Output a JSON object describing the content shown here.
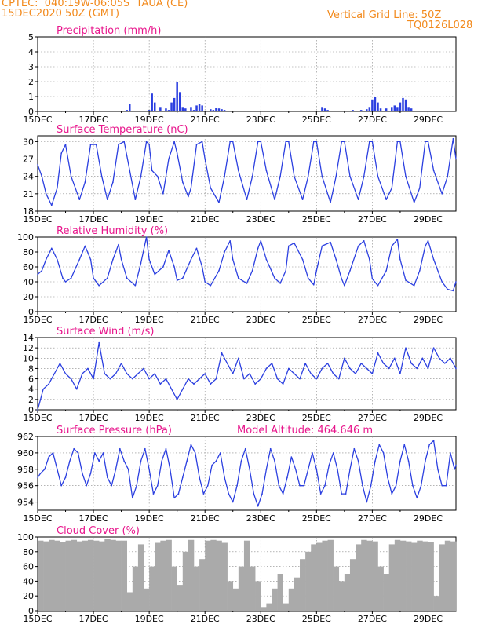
{
  "header": {
    "line1": "CPTEC:  040:19W-06:05S  TAUA (CE)",
    "line2": "15DEC2020 50Z (GMT)",
    "grid_note": "Vertical Grid Line: 50Z",
    "code": "TQ0126L028"
  },
  "colors": {
    "header": "#f28a1d",
    "title": "#e8168c",
    "line": "#2b3fe0",
    "cloud": "#aaaaaa",
    "grid": "#888888"
  },
  "chart_data": [
    {
      "id": "precip",
      "type": "bar",
      "title": "Precipitation (mm/h)",
      "ylim": [
        0,
        5
      ],
      "yticks": [
        0,
        1,
        2,
        3,
        4,
        5
      ],
      "x_range_days": [
        15,
        30
      ],
      "xtick_labels": [
        "15DEC",
        "17DEC",
        "19DEC",
        "21DEC",
        "23DEC",
        "25DEC",
        "27DEC",
        "29DEC"
      ],
      "x": [
        15.1,
        15.5,
        16.0,
        16.5,
        17.0,
        17.5,
        18.0,
        18.2,
        18.3,
        19.0,
        19.1,
        19.2,
        19.4,
        19.6,
        19.7,
        19.8,
        19.9,
        20.0,
        20.1,
        20.2,
        20.3,
        20.5,
        20.6,
        20.7,
        20.8,
        20.9,
        21.2,
        21.3,
        21.4,
        21.5,
        21.6,
        21.7,
        22.0,
        22.5,
        23.0,
        23.5,
        24.0,
        24.5,
        25.0,
        25.2,
        25.3,
        25.4,
        26.0,
        26.3,
        26.5,
        26.6,
        26.8,
        26.9,
        27.0,
        27.1,
        27.2,
        27.3,
        27.5,
        27.7,
        27.8,
        27.9,
        28.0,
        28.1,
        28.2,
        28.3,
        28.4,
        28.5,
        29.0,
        29.5
      ],
      "values": [
        0.05,
        0.05,
        0.05,
        0.05,
        0.05,
        0.05,
        0.05,
        0.1,
        0.5,
        0.1,
        1.2,
        0.6,
        0.3,
        0.2,
        0.1,
        0.6,
        0.9,
        2.0,
        1.3,
        0.3,
        0.2,
        0.3,
        0.1,
        0.4,
        0.5,
        0.4,
        0.15,
        0.1,
        0.25,
        0.2,
        0.15,
        0.1,
        0.05,
        0.05,
        0.05,
        0.05,
        0.05,
        0.05,
        0.05,
        0.3,
        0.2,
        0.1,
        0.05,
        0.1,
        0.05,
        0.1,
        0.15,
        0.3,
        0.8,
        1.0,
        0.6,
        0.2,
        0.2,
        0.3,
        0.4,
        0.3,
        0.6,
        0.9,
        0.8,
        0.3,
        0.2,
        0.05,
        0.05,
        0.05
      ]
    },
    {
      "id": "temp",
      "type": "line",
      "title": "Surface Temperature (nC)",
      "ylim": [
        18,
        31
      ],
      "yticks": [
        18,
        21,
        24,
        27,
        30
      ],
      "x_range_days": [
        15,
        30
      ],
      "xtick_labels": [
        "15DEC",
        "17DEC",
        "19DEC",
        "21DEC",
        "23DEC",
        "25DEC",
        "27DEC",
        "29DEC"
      ],
      "x": [
        15.0,
        15.15,
        15.3,
        15.5,
        15.7,
        15.85,
        16.0,
        16.2,
        16.5,
        16.7,
        16.9,
        17.1,
        17.3,
        17.5,
        17.7,
        17.9,
        18.1,
        18.3,
        18.5,
        18.7,
        18.9,
        19.0,
        19.1,
        19.3,
        19.5,
        19.7,
        19.9,
        20.0,
        20.2,
        20.4,
        20.5,
        20.7,
        20.9,
        21.0,
        21.2,
        21.5,
        21.7,
        21.9,
        22.0,
        22.2,
        22.5,
        22.7,
        22.9,
        23.0,
        23.2,
        23.5,
        23.7,
        23.9,
        24.0,
        24.2,
        24.5,
        24.7,
        24.9,
        25.0,
        25.2,
        25.5,
        25.7,
        25.9,
        26.0,
        26.2,
        26.5,
        26.7,
        26.9,
        27.0,
        27.2,
        27.5,
        27.7,
        27.9,
        28.0,
        28.2,
        28.5,
        28.7,
        28.9,
        29.0,
        29.2,
        29.5,
        29.7,
        29.9,
        30.0
      ],
      "values": [
        26,
        24,
        21,
        19,
        22,
        28,
        29.5,
        24,
        20,
        23,
        29.5,
        29.5,
        24,
        20,
        23,
        29.5,
        30,
        25,
        20,
        24,
        30,
        29.5,
        25,
        24,
        21,
        27,
        30,
        28,
        23,
        20.5,
        22,
        29.5,
        30,
        27,
        22,
        19.5,
        24,
        30,
        30,
        25,
        20,
        24,
        30,
        30,
        25,
        20,
        24,
        30,
        30,
        24,
        20,
        24,
        30,
        30,
        24,
        19.5,
        24,
        30,
        30,
        24,
        20,
        24,
        30,
        30,
        24,
        20,
        22,
        30,
        30,
        24,
        19.5,
        22,
        30,
        30,
        25,
        21,
        24,
        30.5,
        27
      ]
    },
    {
      "id": "rh",
      "type": "line",
      "title": "Relative Humidity (%)",
      "ylim": [
        0,
        100
      ],
      "yticks": [
        0,
        20,
        40,
        60,
        80,
        100
      ],
      "x_range_days": [
        15,
        30
      ],
      "xtick_labels": [
        "15DEC",
        "17DEC",
        "19DEC",
        "21DEC",
        "23DEC",
        "25DEC",
        "27DEC",
        "29DEC"
      ],
      "x": [
        15.0,
        15.15,
        15.3,
        15.5,
        15.7,
        15.9,
        16.0,
        16.2,
        16.5,
        16.7,
        16.9,
        17.0,
        17.2,
        17.5,
        17.7,
        17.9,
        18.0,
        18.2,
        18.5,
        18.7,
        18.9,
        19.0,
        19.2,
        19.5,
        19.7,
        19.9,
        20.0,
        20.2,
        20.5,
        20.7,
        20.9,
        21.0,
        21.2,
        21.5,
        21.7,
        21.9,
        22.0,
        22.2,
        22.5,
        22.7,
        22.9,
        23.0,
        23.2,
        23.5,
        23.7,
        23.9,
        24.0,
        24.2,
        24.5,
        24.7,
        24.9,
        25.0,
        25.2,
        25.5,
        25.7,
        25.9,
        26.0,
        26.2,
        26.5,
        26.7,
        26.9,
        27.0,
        27.2,
        27.5,
        27.7,
        27.9,
        28.0,
        28.2,
        28.5,
        28.7,
        28.9,
        29.0,
        29.2,
        29.5,
        29.7,
        29.9,
        30.0
      ],
      "values": [
        50,
        55,
        70,
        85,
        70,
        45,
        40,
        45,
        70,
        88,
        70,
        45,
        35,
        45,
        70,
        90,
        70,
        45,
        35,
        65,
        100,
        70,
        50,
        60,
        82,
        60,
        42,
        45,
        70,
        85,
        60,
        40,
        35,
        55,
        80,
        95,
        70,
        45,
        38,
        55,
        85,
        95,
        70,
        45,
        38,
        55,
        88,
        92,
        70,
        45,
        36,
        55,
        88,
        93,
        70,
        44,
        35,
        55,
        88,
        95,
        70,
        44,
        35,
        55,
        88,
        97,
        70,
        42,
        35,
        55,
        88,
        95,
        70,
        40,
        30,
        28,
        40
      ]
    },
    {
      "id": "wind",
      "type": "line",
      "title": "Surface Wind (m/s)",
      "ylim": [
        0,
        14
      ],
      "yticks": [
        0,
        2,
        4,
        6,
        8,
        10,
        12,
        14
      ],
      "x_range_days": [
        15,
        30
      ],
      "xtick_labels": [
        "15DEC",
        "17DEC",
        "19DEC",
        "21DEC",
        "23DEC",
        "25DEC",
        "27DEC",
        "29DEC"
      ],
      "x": [
        15.0,
        15.1,
        15.2,
        15.4,
        15.6,
        15.8,
        16.0,
        16.2,
        16.4,
        16.6,
        16.8,
        17.0,
        17.2,
        17.4,
        17.6,
        17.8,
        18.0,
        18.2,
        18.4,
        18.6,
        18.8,
        19.0,
        19.2,
        19.4,
        19.6,
        19.8,
        20.0,
        20.2,
        20.4,
        20.6,
        20.8,
        21.0,
        21.2,
        21.4,
        21.6,
        21.8,
        22.0,
        22.2,
        22.4,
        22.6,
        22.8,
        23.0,
        23.2,
        23.4,
        23.6,
        23.8,
        24.0,
        24.2,
        24.4,
        24.6,
        24.8,
        25.0,
        25.2,
        25.4,
        25.6,
        25.8,
        26.0,
        26.2,
        26.4,
        26.6,
        26.8,
        27.0,
        27.2,
        27.4,
        27.6,
        27.8,
        28.0,
        28.2,
        28.4,
        28.6,
        28.8,
        29.0,
        29.2,
        29.4,
        29.6,
        29.8,
        30.0
      ],
      "values": [
        0,
        2,
        4,
        5,
        7,
        9,
        7,
        6,
        4,
        7,
        8,
        6,
        13,
        7,
        6,
        7,
        9,
        7,
        6,
        7,
        8,
        6,
        7,
        5,
        6,
        4,
        2,
        4,
        6,
        5,
        6,
        7,
        5,
        6,
        11,
        9,
        7,
        10,
        6,
        7,
        5,
        6,
        8,
        9,
        6,
        5,
        8,
        7,
        6,
        9,
        7,
        6,
        8,
        9,
        7,
        6,
        10,
        8,
        7,
        9,
        8,
        7,
        11,
        9,
        8,
        10,
        7,
        12,
        9,
        8,
        10,
        8,
        12,
        10,
        9,
        10,
        8
      ]
    },
    {
      "id": "pressure",
      "type": "line",
      "title": "Surface Pressure (hPa)",
      "annotation": "Model Altitude: 464.646 m",
      "ylim": [
        953,
        962
      ],
      "yticks": [
        954,
        956,
        958,
        960,
        962
      ],
      "x_range_days": [
        15,
        30
      ],
      "xtick_labels": [
        "15DEC",
        "17DEC",
        "19DEC",
        "21DEC",
        "23DEC",
        "25DEC",
        "27DEC",
        "29DEC"
      ],
      "x": [
        15.0,
        15.1,
        15.25,
        15.4,
        15.55,
        15.7,
        15.85,
        16.0,
        16.15,
        16.3,
        16.45,
        16.6,
        16.75,
        16.9,
        17.05,
        17.2,
        17.35,
        17.5,
        17.65,
        17.8,
        17.95,
        18.1,
        18.25,
        18.4,
        18.55,
        18.7,
        18.85,
        19.0,
        19.15,
        19.3,
        19.45,
        19.6,
        19.75,
        19.9,
        20.05,
        20.2,
        20.35,
        20.5,
        20.65,
        20.8,
        20.95,
        21.1,
        21.25,
        21.4,
        21.55,
        21.7,
        21.85,
        22.0,
        22.15,
        22.3,
        22.45,
        22.6,
        22.75,
        22.9,
        23.05,
        23.2,
        23.35,
        23.5,
        23.65,
        23.8,
        23.95,
        24.1,
        24.25,
        24.4,
        24.55,
        24.7,
        24.85,
        25.0,
        25.15,
        25.3,
        25.45,
        25.6,
        25.75,
        25.9,
        26.05,
        26.2,
        26.35,
        26.5,
        26.65,
        26.8,
        26.95,
        27.1,
        27.25,
        27.4,
        27.55,
        27.7,
        27.85,
        28.0,
        28.15,
        28.3,
        28.45,
        28.6,
        28.75,
        28.9,
        29.05,
        29.2,
        29.35,
        29.5,
        29.65,
        29.8,
        29.95,
        30.0
      ],
      "values": [
        957,
        957.5,
        958,
        959.5,
        960,
        958,
        956,
        957,
        959,
        960.5,
        960,
        957.5,
        956,
        957.5,
        960,
        959,
        960,
        957,
        956,
        958,
        960.5,
        959,
        958,
        954.5,
        956,
        959,
        960.5,
        958,
        955,
        956,
        959,
        960.5,
        958,
        954.5,
        955,
        957,
        959,
        961,
        960,
        957,
        955,
        956,
        958.5,
        959,
        960,
        957,
        955,
        954,
        956,
        959,
        960.5,
        958,
        955,
        953.5,
        955,
        958,
        960.5,
        959,
        956,
        955,
        957,
        959.5,
        958,
        956,
        956,
        958,
        960,
        958,
        955,
        956,
        958.5,
        960,
        958,
        955,
        955,
        958,
        960.5,
        959,
        956,
        954,
        956,
        959,
        961,
        960,
        957,
        955,
        956,
        959,
        961,
        959,
        956,
        954.5,
        956,
        959,
        961,
        961.5,
        958,
        956,
        956,
        960,
        958,
        958.5
      ]
    },
    {
      "id": "cloud",
      "type": "area",
      "title": "Cloud Cover (%)",
      "ylim": [
        0,
        100
      ],
      "yticks": [
        0,
        20,
        40,
        60,
        80,
        100
      ],
      "x_range_days": [
        15,
        30
      ],
      "xtick_labels": [
        "15DEC",
        "17DEC",
        "19DEC",
        "21DEC",
        "23DEC",
        "25DEC",
        "27DEC",
        "29DEC"
      ],
      "x": [
        15.0,
        15.2,
        15.4,
        15.6,
        15.8,
        16.0,
        16.2,
        16.4,
        16.6,
        16.8,
        17.0,
        17.2,
        17.4,
        17.6,
        17.8,
        18.0,
        18.2,
        18.4,
        18.6,
        18.8,
        19.0,
        19.2,
        19.4,
        19.6,
        19.8,
        20.0,
        20.2,
        20.4,
        20.6,
        20.8,
        21.0,
        21.2,
        21.4,
        21.6,
        21.8,
        22.0,
        22.2,
        22.4,
        22.6,
        22.8,
        23.0,
        23.2,
        23.4,
        23.6,
        23.8,
        24.0,
        24.2,
        24.4,
        24.6,
        24.8,
        25.0,
        25.2,
        25.4,
        25.6,
        25.8,
        26.0,
        26.2,
        26.4,
        26.6,
        26.8,
        27.0,
        27.2,
        27.4,
        27.6,
        27.8,
        28.0,
        28.2,
        28.4,
        28.6,
        28.8,
        29.0,
        29.2,
        29.4,
        29.6,
        29.8,
        30.0
      ],
      "values": [
        95,
        94,
        96,
        95,
        93,
        95,
        96,
        94,
        95,
        96,
        95,
        94,
        97,
        96,
        95,
        95,
        25,
        60,
        90,
        30,
        60,
        92,
        95,
        96,
        60,
        35,
        80,
        96,
        60,
        70,
        95,
        96,
        95,
        92,
        40,
        30,
        60,
        95,
        60,
        40,
        5,
        10,
        30,
        50,
        10,
        30,
        45,
        70,
        80,
        90,
        92,
        95,
        96,
        60,
        40,
        50,
        70,
        90,
        96,
        95,
        94,
        60,
        50,
        90,
        96,
        95,
        94,
        92,
        95,
        94,
        93,
        20,
        90,
        95,
        94,
        0
      ]
    }
  ]
}
